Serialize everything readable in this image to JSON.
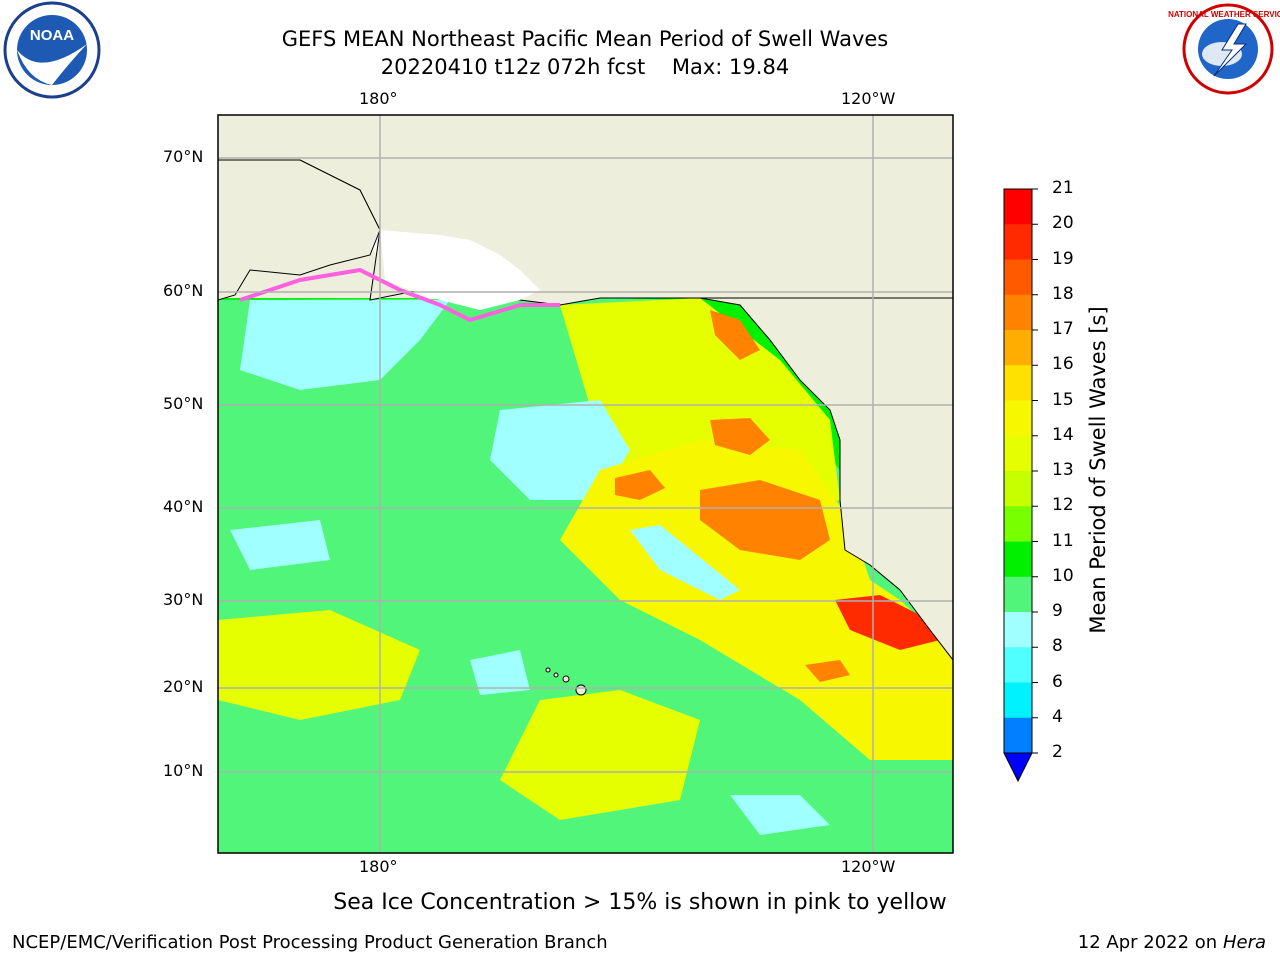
{
  "title": {
    "line1": "GEFS MEAN Northeast Pacific Mean Period of Swell Waves",
    "line2": "20220410 t12z 072h fcst    Max: 19.84"
  },
  "axes": {
    "lon_labels": [
      "180°",
      "120°W"
    ],
    "lat_labels": [
      "70°N",
      "60°N",
      "50°N",
      "40°N",
      "30°N",
      "20°N",
      "10°N"
    ]
  },
  "colorbar": {
    "label": "Mean Period of Swell Waves [s]",
    "ticks": [
      "21",
      "20",
      "19",
      "18",
      "17",
      "16",
      "15",
      "14",
      "13",
      "12",
      "11",
      "10",
      "9",
      "8",
      "6",
      "4",
      "2"
    ],
    "colors": [
      "#ff0000",
      "#ff2a00",
      "#ff5a00",
      "#ff8200",
      "#ffae00",
      "#ffe100",
      "#f7f700",
      "#e6ff00",
      "#c8ff00",
      "#78ff00",
      "#00f000",
      "#50f57a",
      "#a0ffff",
      "#50ffff",
      "#00f2ff",
      "#0080ff"
    ],
    "extend_color": "#0000ff"
  },
  "map": {
    "land_color": "#eeeedc",
    "grid_color": "#b0b0b0"
  },
  "note": "Sea Ice Concentration > 15% is shown in pink to yellow",
  "footer": {
    "left": "NCEP/EMC/Verification Post Processing Product Generation Branch",
    "right_date": "12 Apr 2022 on ",
    "right_host": "Hera"
  },
  "logos": {
    "noaa_text": "NOAA",
    "nws_text": "NATIONAL WEATHER SERVICE"
  }
}
